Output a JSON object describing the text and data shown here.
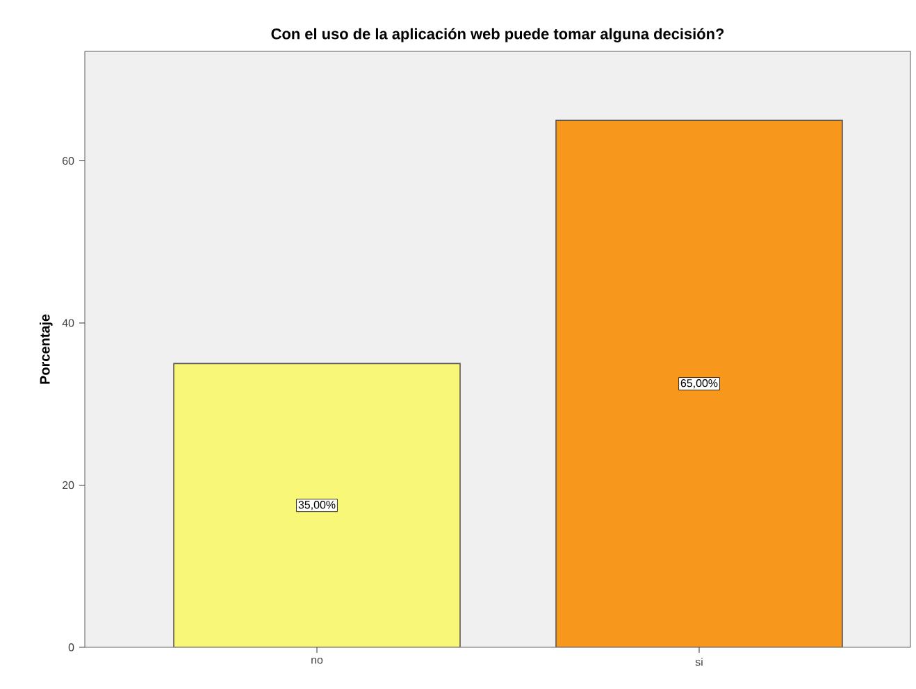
{
  "chart_data": {
    "type": "bar",
    "title": "Con el uso de la aplicación web puede tomar alguna decisión?",
    "ylabel": "Porcentaje",
    "categories": [
      "no",
      "si"
    ],
    "values": [
      35,
      65
    ],
    "value_labels": [
      "35,00%",
      "65,00%"
    ],
    "colors": [
      "#f9f778",
      "#f7981d"
    ],
    "ylim": [
      0,
      73.5
    ],
    "yticks": [
      0,
      20,
      40,
      60
    ]
  }
}
